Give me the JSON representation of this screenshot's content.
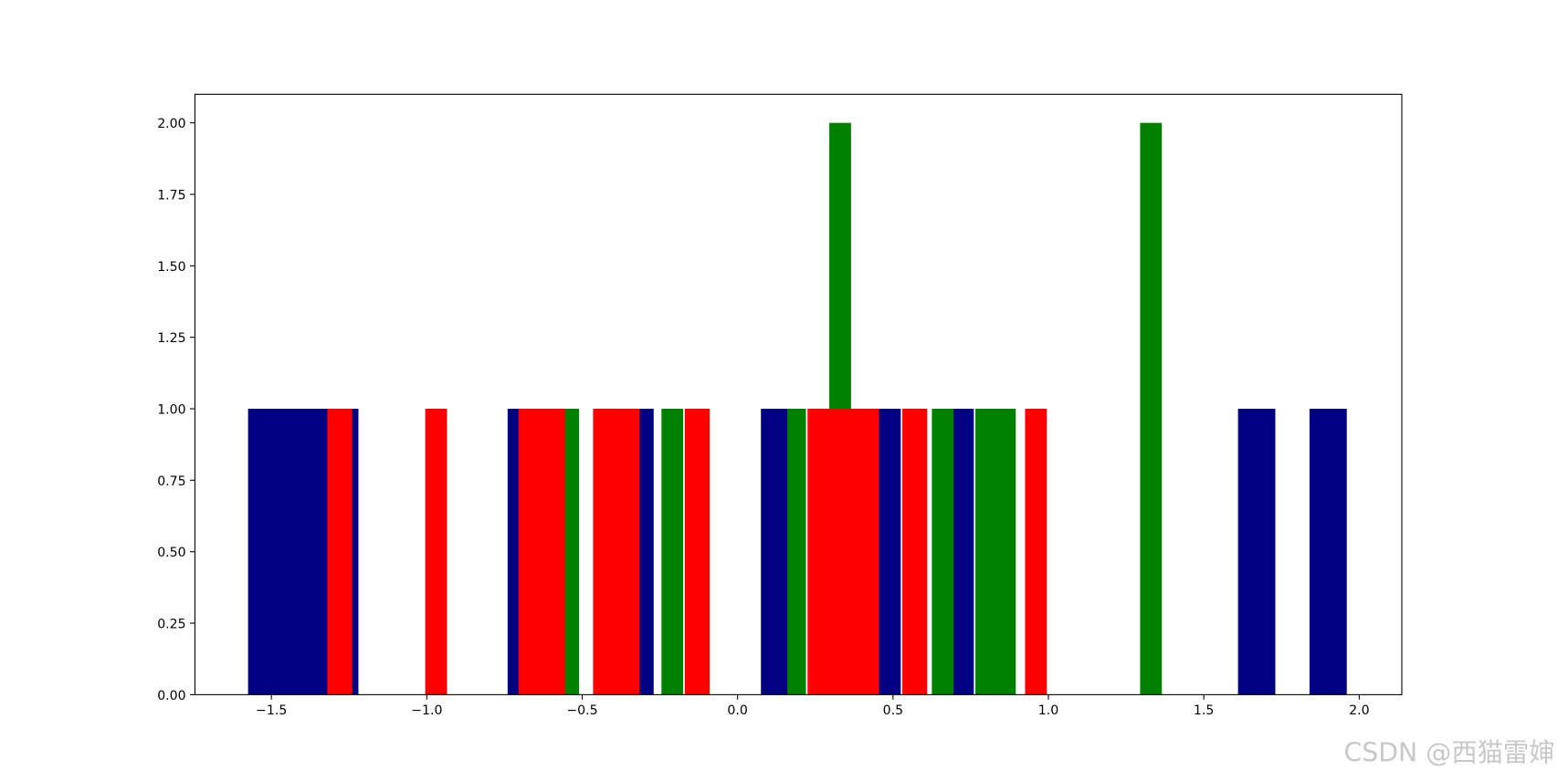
{
  "chart_data": {
    "type": "bar",
    "watermark": "CSDN @西猫雷婶",
    "xlim": [
      -1.746,
      2.137
    ],
    "ylim": [
      0,
      2.1
    ],
    "xticks": [
      {
        "value": -1.5,
        "label": "−1.5"
      },
      {
        "value": -1.0,
        "label": "−1.0"
      },
      {
        "value": -0.5,
        "label": "−0.5"
      },
      {
        "value": 0,
        "label": "0.0"
      },
      {
        "value": 0.5,
        "label": "0.5"
      },
      {
        "value": 1.0,
        "label": "1.0"
      },
      {
        "value": 1.5,
        "label": "1.5"
      },
      {
        "value": 2.0,
        "label": "2.0"
      }
    ],
    "yticks": [
      {
        "value": 0,
        "label": "0.00"
      },
      {
        "value": 0.25,
        "label": "0.25"
      },
      {
        "value": 0.5,
        "label": "0.50"
      },
      {
        "value": 0.75,
        "label": "0.75"
      },
      {
        "value": 1.0,
        "label": "1.00"
      },
      {
        "value": 1.25,
        "label": "1.25"
      },
      {
        "value": 1.5,
        "label": "1.50"
      },
      {
        "value": 1.75,
        "label": "1.75"
      },
      {
        "value": 2.0,
        "label": "2.00"
      }
    ],
    "series": [
      {
        "color": "#000080",
        "x": [
          -1.45,
          -1.28,
          -0.66,
          -0.33,
          0.13,
          0.45,
          0.71,
          1.67,
          1.9
        ],
        "widths": [
          0.25,
          0.12,
          0.16,
          0.12,
          0.11,
          0.15,
          0.1,
          0.12,
          0.12
        ],
        "values": [
          1,
          1,
          1,
          1,
          1,
          1,
          1,
          1,
          1
        ]
      },
      {
        "color": "#008000",
        "x": [
          -0.56,
          -0.21,
          0.19,
          0.33,
          0.66,
          0.83,
          1.33
        ],
        "widths": [
          0.1,
          0.07,
          0.06,
          0.07,
          0.07,
          0.13,
          0.07
        ],
        "values": [
          1,
          1,
          1,
          2,
          1,
          1,
          2
        ]
      },
      {
        "color": "#ff0000",
        "x": [
          -1.28,
          -0.97,
          -0.63,
          -0.39,
          -0.13,
          0.34,
          0.57,
          0.96
        ],
        "widths": [
          0.08,
          0.07,
          0.15,
          0.15,
          0.08,
          0.23,
          0.08,
          0.07
        ],
        "values": [
          1,
          1,
          1,
          1,
          1,
          1,
          1,
          1
        ]
      }
    ]
  }
}
